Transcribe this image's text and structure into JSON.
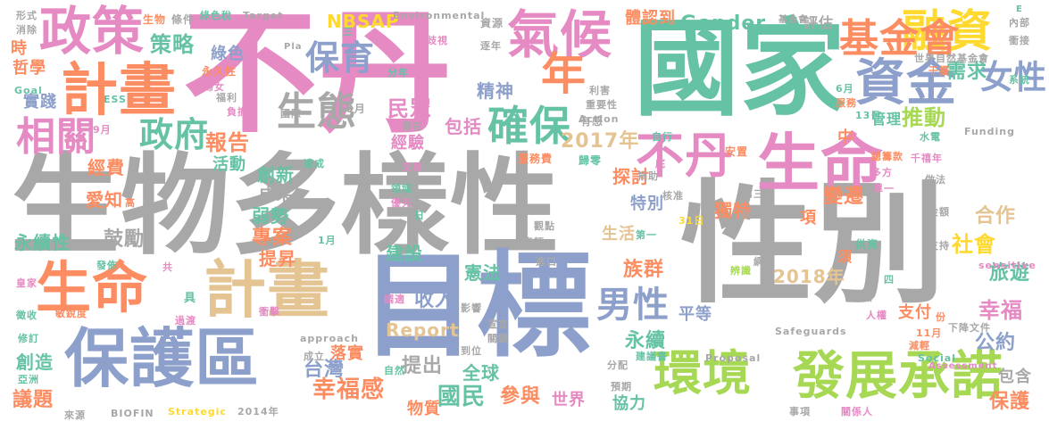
{
  "palette": {
    "gray": "#a8a8a8",
    "pink": "#e58ac3",
    "teal": "#66c2a5",
    "orange": "#fc8d62",
    "blue": "#8da0cb",
    "green": "#a6d854",
    "yellow": "#ffd92f",
    "tan": "#e5c494"
  },
  "words": [
    {
      "text": "生物多樣性",
      "color": "gray"
    },
    {
      "text": "性別",
      "color": "gray"
    },
    {
      "text": "不丹",
      "color": "pink"
    },
    {
      "text": "國家",
      "color": "teal"
    },
    {
      "text": "目標",
      "color": "blue"
    },
    {
      "text": "生命",
      "color": "orange"
    },
    {
      "text": "計畫",
      "color": "tan"
    },
    {
      "text": "保護區",
      "color": "blue"
    },
    {
      "text": "計畫",
      "color": "orange"
    },
    {
      "text": "政策",
      "color": "pink"
    },
    {
      "text": "氣候",
      "color": "pink"
    },
    {
      "text": "資金",
      "color": "blue"
    },
    {
      "text": "不丹",
      "color": "pink"
    },
    {
      "text": "生命",
      "color": "pink"
    },
    {
      "text": "環境",
      "color": "green"
    },
    {
      "text": "發展承諾",
      "color": "green"
    },
    {
      "text": "融資",
      "color": "yellow"
    },
    {
      "text": "基金會",
      "color": "orange"
    },
    {
      "text": "年",
      "color": "orange"
    },
    {
      "text": "女性",
      "color": "blue"
    },
    {
      "text": "保育",
      "color": "blue"
    },
    {
      "text": "生態",
      "color": "gray"
    },
    {
      "text": "確保",
      "color": "teal"
    },
    {
      "text": "政府",
      "color": "teal"
    },
    {
      "text": "相關",
      "color": "pink"
    },
    {
      "text": "男性",
      "color": "blue"
    },
    {
      "text": "策略",
      "color": "teal"
    },
    {
      "text": "Gender",
      "color": "teal"
    },
    {
      "text": "NBSAP",
      "color": "yellow"
    },
    {
      "text": "2017年",
      "color": "tan"
    },
    {
      "text": "民眾",
      "color": "pink"
    },
    {
      "text": "報告",
      "color": "orange"
    },
    {
      "text": "推動",
      "color": "green"
    },
    {
      "text": "需求",
      "color": "teal"
    },
    {
      "text": "永續",
      "color": "teal"
    },
    {
      "text": "幸福感",
      "color": "orange"
    },
    {
      "text": "國民",
      "color": "teal"
    },
    {
      "text": "台灣",
      "color": "blue"
    },
    {
      "text": "社會",
      "color": "yellow"
    },
    {
      "text": "幸福",
      "color": "pink"
    },
    {
      "text": "旅遊",
      "color": "teal"
    },
    {
      "text": "公約",
      "color": "blue"
    },
    {
      "text": "合作",
      "color": "tan"
    },
    {
      "text": "保護",
      "color": "orange"
    },
    {
      "text": "包含",
      "color": "gray"
    },
    {
      "text": "參與",
      "color": "orange"
    },
    {
      "text": "世界",
      "color": "pink"
    },
    {
      "text": "協力",
      "color": "teal"
    },
    {
      "text": "收入",
      "color": "blue"
    },
    {
      "text": "Report",
      "color": "tan"
    },
    {
      "text": "全球",
      "color": "teal"
    },
    {
      "text": "提出",
      "color": "gray"
    },
    {
      "text": "憲法",
      "color": "teal"
    },
    {
      "text": "建設",
      "color": "teal"
    },
    {
      "text": "提昇",
      "color": "orange"
    },
    {
      "text": "專案",
      "color": "orange"
    },
    {
      "text": "鼓勵",
      "color": "gray"
    },
    {
      "text": "弱勢",
      "color": "teal"
    },
    {
      "text": "成果",
      "color": "gray"
    },
    {
      "text": "創新",
      "color": "teal"
    },
    {
      "text": "活動",
      "color": "teal"
    },
    {
      "text": "經費",
      "color": "orange"
    },
    {
      "text": "愛知",
      "color": "orange"
    },
    {
      "text": "永續性",
      "color": "teal"
    },
    {
      "text": "創造",
      "color": "teal"
    },
    {
      "text": "議題",
      "color": "orange"
    },
    {
      "text": "實踐",
      "color": "blue"
    },
    {
      "text": "哲學",
      "color": "orange"
    },
    {
      "text": "時",
      "color": "orange"
    },
    {
      "text": "綠色",
      "color": "blue"
    },
    {
      "text": "精神",
      "color": "blue"
    },
    {
      "text": "包括",
      "color": "pink"
    },
    {
      "text": "經驗",
      "color": "pink"
    },
    {
      "text": "探討",
      "color": "orange"
    },
    {
      "text": "特別",
      "color": "blue"
    },
    {
      "text": "生活",
      "color": "tan"
    },
    {
      "text": "獨特",
      "color": "orange"
    },
    {
      "text": "變遷",
      "color": "orange"
    },
    {
      "text": "族群",
      "color": "orange"
    },
    {
      "text": "2018年",
      "color": "tan"
    },
    {
      "text": "平等",
      "color": "blue"
    },
    {
      "text": "支付",
      "color": "orange"
    },
    {
      "text": "管理",
      "color": "teal"
    },
    {
      "text": "體認到",
      "color": "orange"
    },
    {
      "text": "評估",
      "color": "gray"
    },
    {
      "text": "落實",
      "color": "orange"
    },
    {
      "text": "物質",
      "color": "orange"
    },
    {
      "text": "中",
      "color": "orange"
    },
    {
      "text": "項",
      "color": "orange"
    },
    {
      "text": "須",
      "color": "orange"
    },
    {
      "text": "Environmental",
      "color": "gray"
    },
    {
      "text": "資源",
      "color": "gray"
    },
    {
      "text": "生物",
      "color": "orange"
    },
    {
      "text": "條件",
      "color": "gray"
    },
    {
      "text": "綠色稅",
      "color": "teal"
    },
    {
      "text": "Target",
      "color": "gray"
    },
    {
      "text": "形式",
      "color": "gray"
    },
    {
      "text": "消除",
      "color": "gray"
    },
    {
      "text": "永久性",
      "color": "orange"
    },
    {
      "text": "婦女",
      "color": "pink"
    },
    {
      "text": "Goal",
      "color": "teal"
    },
    {
      "text": "ESS",
      "color": "teal"
    },
    {
      "text": "福利",
      "color": "gray"
    },
    {
      "text": "負擔",
      "color": "pink"
    },
    {
      "text": "國際",
      "color": "gray"
    },
    {
      "text": "10月",
      "color": "gray"
    },
    {
      "text": "9月",
      "color": "pink"
    },
    {
      "text": "達成",
      "color": "teal"
    },
    {
      "text": "交易",
      "color": "pink"
    },
    {
      "text": "分年",
      "color": "teal"
    },
    {
      "text": "潛在",
      "color": "gray"
    },
    {
      "text": "逐年",
      "color": "gray"
    },
    {
      "text": "歧視",
      "color": "pink"
    },
    {
      "text": "有感",
      "color": "gray"
    },
    {
      "text": "利害",
      "color": "gray"
    },
    {
      "text": "重要性",
      "color": "gray"
    },
    {
      "text": "Action",
      "color": "gray"
    },
    {
      "text": "自行",
      "color": "teal"
    },
    {
      "text": "服務費",
      "color": "orange"
    },
    {
      "text": "歸零",
      "color": "teal"
    },
    {
      "text": "捐助",
      "color": "gray"
    },
    {
      "text": "底",
      "color": "pink"
    },
    {
      "text": "核准",
      "color": "gray"
    },
    {
      "text": "安置",
      "color": "orange"
    },
    {
      "text": "總籌款",
      "color": "orange"
    },
    {
      "text": "多方",
      "color": "pink"
    },
    {
      "text": "千禧年",
      "color": "pink"
    },
    {
      "text": "做法",
      "color": "gray"
    },
    {
      "text": "金額",
      "color": "gray"
    },
    {
      "text": "水電",
      "color": "teal"
    },
    {
      "text": "Funding",
      "color": "gray"
    },
    {
      "text": "系統",
      "color": "teal"
    },
    {
      "text": "6月",
      "color": "teal"
    },
    {
      "text": "服務",
      "color": "orange"
    },
    {
      "text": "13日",
      "color": "teal"
    },
    {
      "text": "干擾",
      "color": "orange"
    },
    {
      "text": "世界自然基金會",
      "color": "gray"
    },
    {
      "text": "基金會",
      "color": "gray"
    },
    {
      "text": "內部",
      "color": "gray"
    },
    {
      "text": "衝接",
      "color": "gray"
    },
    {
      "text": "E",
      "color": "teal"
    },
    {
      "text": "Pla",
      "color": "gray"
    },
    {
      "text": "三",
      "color": "teal"
    },
    {
      "text": "高",
      "color": "orange"
    },
    {
      "text": "領域",
      "color": "teal"
    },
    {
      "text": "優先",
      "color": "pink"
    },
    {
      "text": "日",
      "color": "teal"
    },
    {
      "text": "第三",
      "color": "gray"
    },
    {
      "text": "單一",
      "color": "pink"
    },
    {
      "text": "31日",
      "color": "yellow"
    },
    {
      "text": "先",
      "color": "gray"
    },
    {
      "text": "第一",
      "color": "teal"
    },
    {
      "text": "車輛",
      "color": "gray"
    },
    {
      "text": "觀點",
      "color": "gray"
    },
    {
      "text": "進口",
      "color": "gray"
    },
    {
      "text": "1月",
      "color": "teal"
    },
    {
      "text": "發佈",
      "color": "teal"
    },
    {
      "text": "共",
      "color": "pink"
    },
    {
      "text": "皇家",
      "color": "pink"
    },
    {
      "text": "具",
      "color": "teal"
    },
    {
      "text": "徵收",
      "color": "teal"
    },
    {
      "text": "敏銳度",
      "color": "orange"
    },
    {
      "text": "衝擊",
      "color": "pink"
    },
    {
      "text": "過渡",
      "color": "pink"
    },
    {
      "text": "修訂",
      "color": "teal"
    },
    {
      "text": "approach",
      "color": "gray"
    },
    {
      "text": "成立",
      "color": "gray"
    },
    {
      "text": "自然",
      "color": "teal"
    },
    {
      "text": "到位",
      "color": "gray"
    },
    {
      "text": "調適",
      "color": "pink"
    },
    {
      "text": "影響",
      "color": "gray"
    },
    {
      "text": "宣言",
      "color": "gray"
    },
    {
      "text": "關鍵",
      "color": "gray"
    },
    {
      "text": "分配",
      "color": "gray"
    },
    {
      "text": "預期",
      "color": "gray"
    },
    {
      "text": "建議書",
      "color": "teal"
    },
    {
      "text": "Proposal",
      "color": "gray"
    },
    {
      "text": "網絡",
      "color": "gray"
    },
    {
      "text": "辨識",
      "color": "green"
    },
    {
      "text": "增加",
      "color": "gray"
    },
    {
      "text": "四",
      "color": "teal"
    },
    {
      "text": "供資",
      "color": "teal"
    },
    {
      "text": "支持",
      "color": "gray"
    },
    {
      "text": "sensitive",
      "color": "pink"
    },
    {
      "text": "人權",
      "color": "pink"
    },
    {
      "text": "Safeguards",
      "color": "gray"
    },
    {
      "text": "11月",
      "color": "orange"
    },
    {
      "text": "份",
      "color": "orange"
    },
    {
      "text": "下降",
      "color": "gray"
    },
    {
      "text": "文件",
      "color": "gray"
    },
    {
      "text": "減輕",
      "color": "orange"
    },
    {
      "text": "Social",
      "color": "teal"
    },
    {
      "text": "Assessment",
      "color": "pink"
    },
    {
      "text": "Strategic",
      "color": "yellow"
    },
    {
      "text": "BIOFIN",
      "color": "gray"
    },
    {
      "text": "2014年",
      "color": "gray"
    },
    {
      "text": "事項",
      "color": "gray"
    },
    {
      "text": "關係人",
      "color": "pink"
    },
    {
      "text": "亞洲",
      "color": "teal"
    },
    {
      "text": "來源",
      "color": "gray"
    }
  ]
}
